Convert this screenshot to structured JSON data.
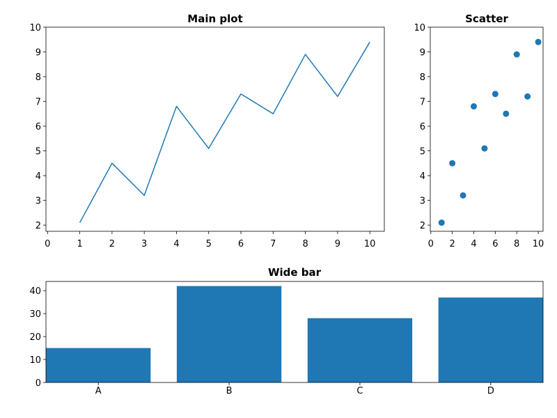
{
  "chart_data": [
    {
      "id": "main",
      "type": "line",
      "title": "Main plot",
      "color": "#1f77b4",
      "x": [
        1,
        2,
        3,
        4,
        5,
        6,
        7,
        8,
        9,
        10
      ],
      "y": [
        2.1,
        4.5,
        3.2,
        6.8,
        5.1,
        7.3,
        6.5,
        8.9,
        7.2,
        9.4
      ],
      "xlim": [
        -0.05,
        10.45
      ],
      "ylim": [
        1.75,
        10.0
      ],
      "xticks": [
        0,
        1,
        2,
        3,
        4,
        5,
        6,
        7,
        8,
        9,
        10
      ],
      "yticks": [
        2,
        3,
        4,
        5,
        6,
        7,
        8,
        9,
        10
      ]
    },
    {
      "id": "scatter",
      "type": "scatter",
      "title": "Scatter",
      "color": "#1f77b4",
      "x": [
        1,
        2,
        3,
        4,
        5,
        6,
        7,
        8,
        9,
        10
      ],
      "y": [
        2.1,
        4.5,
        3.2,
        6.8,
        5.1,
        7.3,
        6.5,
        8.9,
        7.2,
        9.4
      ],
      "xlim": [
        -0.05,
        10.45
      ],
      "ylim": [
        1.75,
        10.0
      ],
      "xticks": [
        0,
        2,
        4,
        6,
        8,
        10
      ],
      "yticks": [
        2,
        3,
        4,
        5,
        6,
        7,
        8,
        9,
        10
      ]
    },
    {
      "id": "bar",
      "type": "bar",
      "title": "Wide bar",
      "color": "#1f77b4",
      "categories": [
        "A",
        "B",
        "C",
        "D"
      ],
      "values": [
        15,
        42,
        28,
        37
      ],
      "ylim": [
        0,
        44
      ],
      "yticks": [
        0,
        10,
        20,
        30,
        40
      ]
    }
  ]
}
